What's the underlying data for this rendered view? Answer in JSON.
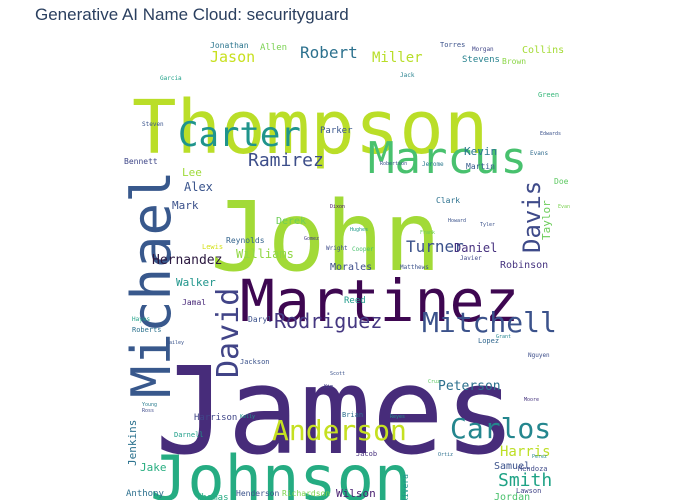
{
  "chart_data": {
    "type": "wordcloud",
    "title": "Generative AI Name Cloud: securityguard",
    "colormap": "viridis",
    "words": [
      {
        "text": "James",
        "weight": 100,
        "color": "#472c7a"
      },
      {
        "text": "John",
        "weight": 82,
        "color": "#a2da37"
      },
      {
        "text": "Thompson",
        "weight": 64,
        "color": "#bade28"
      },
      {
        "text": "Johnson",
        "weight": 58,
        "color": "#25ac82"
      },
      {
        "text": "Martinez",
        "weight": 50,
        "color": "#3e0751"
      },
      {
        "text": "Michael",
        "weight": 48,
        "color": "#38588c"
      },
      {
        "text": "Marcus",
        "weight": 36,
        "color": "#48c16e"
      },
      {
        "text": "Carter",
        "weight": 30,
        "color": "#1f948c"
      },
      {
        "text": "David",
        "weight": 26,
        "color": "#414487"
      },
      {
        "text": "Anderson",
        "weight": 24,
        "color": "#c5e021"
      },
      {
        "text": "Mitchell",
        "weight": 24,
        "color": "#3b528b"
      },
      {
        "text": "Carlos",
        "weight": 24,
        "color": "#24868e"
      },
      {
        "text": "Davis",
        "weight": 22,
        "color": "#3e4a89"
      },
      {
        "text": "Rodriguez",
        "weight": 18,
        "color": "#453781"
      },
      {
        "text": "Ramirez",
        "weight": 16,
        "color": "#3d4e8a"
      },
      {
        "text": "Robert",
        "weight": 14,
        "color": "#2c718e"
      },
      {
        "text": "Smith",
        "weight": 14,
        "color": "#20a386"
      },
      {
        "text": "Harris",
        "weight": 12,
        "color": "#bddf26"
      },
      {
        "text": "Turner",
        "weight": 12,
        "color": "#3b528b"
      },
      {
        "text": "Peterson",
        "weight": 11,
        "color": "#2d708e"
      },
      {
        "text": "Miller",
        "weight": 11,
        "color": "#b8de29"
      },
      {
        "text": "Jason",
        "weight": 11,
        "color": "#c8e020"
      },
      {
        "text": "Hernandez",
        "weight": 10,
        "color": "#2a173f"
      },
      {
        "text": "Alex",
        "weight": 10,
        "color": "#3a548c"
      },
      {
        "text": "Daniel",
        "weight": 10,
        "color": "#46307e"
      },
      {
        "text": "Taylor",
        "weight": 9,
        "color": "#6ccd5a"
      },
      {
        "text": "Jenkins",
        "weight": 9,
        "color": "#2c728e"
      },
      {
        "text": "Williams",
        "weight": 9,
        "color": "#90d743"
      },
      {
        "text": "Robinson",
        "weight": 9,
        "color": "#463480"
      },
      {
        "text": "Jake",
        "weight": 9,
        "color": "#28ae80"
      },
      {
        "text": "Samuel",
        "weight": 8,
        "color": "#3b528b"
      },
      {
        "text": "Jordan",
        "weight": 8,
        "color": "#4ac16d"
      },
      {
        "text": "Wilson",
        "weight": 8,
        "color": "#481f70"
      },
      {
        "text": "Anthony",
        "weight": 8,
        "color": "#2d708e"
      },
      {
        "text": "Morales",
        "weight": 8,
        "color": "#3d4d8a"
      },
      {
        "text": "Walker",
        "weight": 8,
        "color": "#1f958b"
      },
      {
        "text": "Lee",
        "weight": 8,
        "color": "#9fda3a"
      },
      {
        "text": "Mark",
        "weight": 8,
        "color": "#3b518b"
      },
      {
        "text": "Kevin",
        "weight": 8,
        "color": "#2a788e"
      },
      {
        "text": "Derek",
        "weight": 8,
        "color": "#6ece58"
      },
      {
        "text": "Jonathan",
        "weight": 7,
        "color": "#2b758e"
      },
      {
        "text": "Allen",
        "weight": 7,
        "color": "#7ad151"
      },
      {
        "text": "Torres",
        "weight": 6,
        "color": "#3b528b"
      },
      {
        "text": "Morgan",
        "weight": 6,
        "color": "#404688"
      },
      {
        "text": "Collins",
        "weight": 7,
        "color": "#a5db36"
      },
      {
        "text": "Stevens",
        "weight": 7,
        "color": "#26828e"
      },
      {
        "text": "Brown",
        "weight": 6,
        "color": "#8bd646"
      },
      {
        "text": "Parker",
        "weight": 7,
        "color": "#39568c"
      },
      {
        "text": "Bennett",
        "weight": 6,
        "color": "#3f4788"
      },
      {
        "text": "Reynolds",
        "weight": 6,
        "color": "#33638d"
      },
      {
        "text": "Harrison",
        "weight": 7,
        "color": "#404688"
      },
      {
        "text": "Jamal",
        "weight": 6,
        "color": "#482878"
      },
      {
        "text": "Reed",
        "weight": 6,
        "color": "#1e9b8a"
      },
      {
        "text": "Daryl",
        "weight": 6,
        "color": "#3b518b"
      },
      {
        "text": "Garcia",
        "weight": 5,
        "color": "#1fa188"
      },
      {
        "text": "Steven",
        "weight": 5,
        "color": "#3a548c"
      },
      {
        "text": "Green",
        "weight": 5,
        "color": "#35b779"
      },
      {
        "text": "Jack",
        "weight": 5,
        "color": "#26818e"
      },
      {
        "text": "Brian",
        "weight": 5,
        "color": "#2e6f8e"
      },
      {
        "text": "Jacob",
        "weight": 5,
        "color": "#472f7d"
      },
      {
        "text": "Thomas",
        "weight": 6,
        "color": "#25ab82"
      },
      {
        "text": "Henderson",
        "weight": 6,
        "color": "#3b528b"
      },
      {
        "text": "Richardson",
        "weight": 6,
        "color": "#7fd34e"
      },
      {
        "text": "Lewis",
        "weight": 5,
        "color": "#d5e21a"
      },
      {
        "text": "Wright",
        "weight": 5,
        "color": "#3e4c8a"
      },
      {
        "text": "Cooper",
        "weight": 5,
        "color": "#4ac16d"
      },
      {
        "text": "Matthews",
        "weight": 5,
        "color": "#3b528b"
      },
      {
        "text": "Lopez",
        "weight": 5,
        "color": "#31678e"
      },
      {
        "text": "Mendoza",
        "weight": 5,
        "color": "#3e4989"
      },
      {
        "text": "Lawson",
        "weight": 5,
        "color": "#414487"
      },
      {
        "text": "Rivera",
        "weight": 5,
        "color": "#1f958b"
      },
      {
        "text": "Roberts",
        "weight": 5,
        "color": "#2c728e"
      },
      {
        "text": "Hayes",
        "weight": 5,
        "color": "#1fa187"
      },
      {
        "text": "Darnell",
        "weight": 5,
        "color": "#1f9e89"
      },
      {
        "text": "Jackson",
        "weight": 5,
        "color": "#3b528b"
      },
      {
        "text": "Clark",
        "weight": 5,
        "color": "#2c718e"
      },
      {
        "text": "Doe",
        "weight": 5,
        "color": "#5ec962"
      },
      {
        "text": "Martin",
        "weight": 5,
        "color": "#365c8d"
      },
      {
        "text": "Jerome",
        "weight": 4,
        "color": "#2a788e"
      },
      {
        "text": "Robertson",
        "weight": 4,
        "color": "#3b518b"
      },
      {
        "text": "Evans",
        "weight": 4,
        "color": "#2f6b8e"
      },
      {
        "text": "Javier",
        "weight": 4,
        "color": "#3f4889"
      },
      {
        "text": "Moore",
        "weight": 4,
        "color": "#45337d"
      },
      {
        "text": "Perez",
        "weight": 4,
        "color": "#24878e"
      },
      {
        "text": "Nguyen",
        "weight": 4,
        "color": "#3d4e8a"
      },
      {
        "text": "Edwards",
        "weight": 4,
        "color": "#3b528b"
      },
      {
        "text": "Cruz",
        "weight": 4,
        "color": "#5ec962"
      },
      {
        "text": "Young",
        "weight": 4,
        "color": "#287c8e"
      },
      {
        "text": "Kelly",
        "weight": 4,
        "color": "#1f978b"
      },
      {
        "text": "Gomez",
        "weight": 4,
        "color": "#443983"
      },
      {
        "text": "Howard",
        "weight": 4,
        "color": "#3b528b"
      },
      {
        "text": "Dixon",
        "weight": 4,
        "color": "#471365"
      },
      {
        "text": "Frank",
        "weight": 4,
        "color": "#6ccd5a"
      },
      {
        "text": "Hughes",
        "weight": 4,
        "color": "#1f9a8a"
      },
      {
        "text": "Tyler",
        "weight": 4,
        "color": "#3b528b"
      },
      {
        "text": "Kim",
        "weight": 4,
        "color": "#424086"
      },
      {
        "text": "Scott",
        "weight": 4,
        "color": "#3b528b"
      },
      {
        "text": "Reyes",
        "weight": 4,
        "color": "#21918c"
      },
      {
        "text": "Ortiz",
        "weight": 4,
        "color": "#2d708e"
      },
      {
        "text": "Bailey",
        "weight": 4,
        "color": "#3a548c"
      },
      {
        "text": "Grant",
        "weight": 4,
        "color": "#25858e"
      },
      {
        "text": "Ross",
        "weight": 4,
        "color": "#3e4a89"
      },
      {
        "text": "Evan",
        "weight": 4,
        "color": "#7ad151"
      }
    ]
  }
}
